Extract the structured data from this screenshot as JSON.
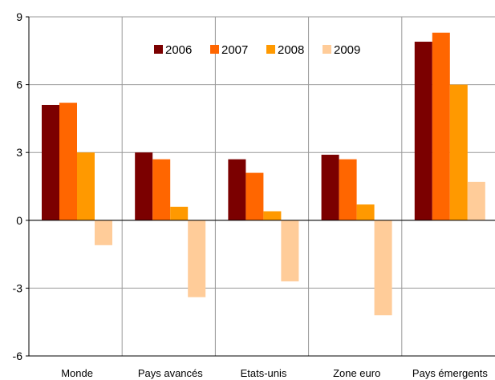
{
  "chart_data": {
    "type": "bar",
    "categories": [
      "Monde",
      "Pays avancés",
      "Etats-unis",
      "Zone euro",
      "Pays émergents"
    ],
    "series": [
      {
        "name": "2006",
        "color": "#7b0000",
        "values": [
          5.1,
          3.0,
          2.7,
          2.9,
          7.9
        ]
      },
      {
        "name": "2007",
        "color": "#ff6600",
        "values": [
          5.2,
          2.7,
          2.1,
          2.7,
          8.3
        ]
      },
      {
        "name": "2008",
        "color": "#ff9900",
        "values": [
          3.0,
          0.6,
          0.4,
          0.7,
          6.0
        ]
      },
      {
        "name": "2009",
        "color": "#ffcc99",
        "values": [
          -1.1,
          -3.4,
          -2.7,
          -4.2,
          1.7
        ]
      }
    ],
    "yticks": [
      "9",
      "6",
      "3",
      "0",
      "-3",
      "-6"
    ],
    "ylim": [
      -6,
      9
    ],
    "grid": true,
    "legend": "top-center"
  }
}
